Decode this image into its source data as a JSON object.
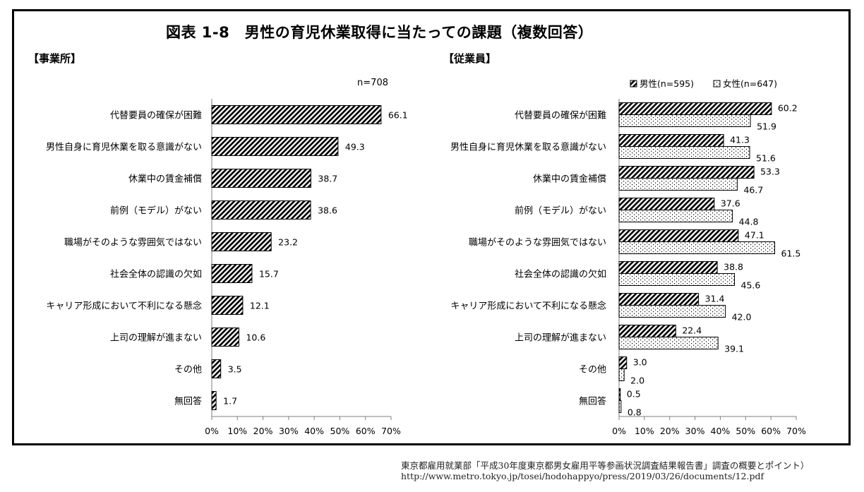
{
  "title": "図表 1-8　男性の育児休業取得に当たっての課題（複数回答）",
  "source": {
    "line1": "東京都雇用就業部「平成30年度東京都男女雇用平等参画状況調査結果報告書」調査の概要とポイント）",
    "line2": "http://www.metro.tokyo.jp/tosei/hodohappyo/press/2019/03/26/documents/12.pdf"
  },
  "chart_data": [
    {
      "type": "bar",
      "orientation": "horizontal",
      "panel_label": "【事業所】",
      "n_label": "n=708",
      "categories": [
        "代替要員の確保が困難",
        "男性自身に育児休業を取る意識がない",
        "休業中の賃金補償",
        "前例（モデル）がない",
        "職場がそのような雰囲気ではない",
        "社会全体の認識の欠如",
        "キャリア形成において不利になる懸念",
        "上司の理解が進まない",
        "その他",
        "無回答"
      ],
      "series": [
        {
          "values": [
            66.1,
            49.3,
            38.7,
            38.6,
            23.2,
            15.7,
            12.1,
            10.6,
            3.5,
            1.7
          ],
          "pattern": "diagonal-hatch"
        }
      ],
      "xlim": [
        0,
        70
      ],
      "xticks": [
        "0%",
        "10%",
        "20%",
        "30%",
        "40%",
        "50%",
        "60%",
        "70%"
      ],
      "grid": false
    },
    {
      "type": "bar",
      "orientation": "horizontal",
      "panel_label": "【従業員】",
      "categories": [
        "代替要員の確保が困難",
        "男性自身に育児休業を取る意識がない",
        "休業中の賃金補償",
        "前例（モデル）がない",
        "職場がそのような雰囲気ではない",
        "社会全体の認識の欠如",
        "キャリア形成において不利になる懸念",
        "上司の理解が進まない",
        "その他",
        "無回答"
      ],
      "series": [
        {
          "name": "男性(n=595)",
          "values": [
            60.2,
            41.3,
            53.3,
            37.6,
            47.1,
            38.8,
            31.4,
            22.4,
            3.0,
            0.5
          ],
          "value_labels": [
            "60.2",
            "41.3",
            "53.3",
            "37.6",
            "47.1",
            "38.8",
            "31.4",
            "22.4",
            "3.0",
            "0.5"
          ],
          "pattern": "diagonal-hatch"
        },
        {
          "name": "女性(n=647)",
          "values": [
            51.9,
            51.6,
            46.7,
            44.8,
            61.5,
            45.6,
            42.0,
            39.1,
            2.0,
            0.8
          ],
          "value_labels": [
            "51.9",
            "51.6",
            "46.7",
            "44.8",
            "61.5",
            "45.6",
            "42.0",
            "39.1",
            "2.0",
            "0.8"
          ],
          "pattern": "dots"
        }
      ],
      "xlim": [
        0,
        70
      ],
      "xticks": [
        "0%",
        "10%",
        "20%",
        "30%",
        "40%",
        "50%",
        "60%",
        "70%"
      ],
      "legend_position": "top-right",
      "grid": false
    }
  ]
}
